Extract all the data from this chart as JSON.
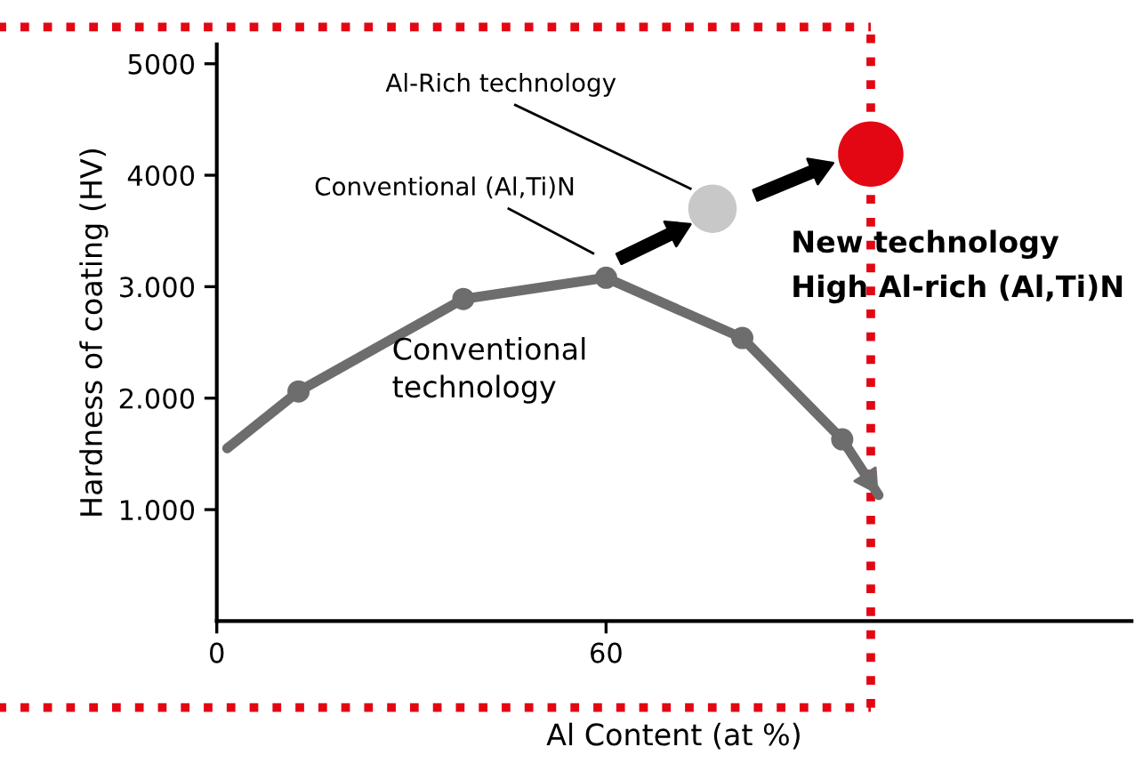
{
  "chart_data": {
    "type": "line",
    "xlabel": "Al Content (at %)",
    "ylabel": "Hardness of coating (HV)",
    "xlim": [
      0,
      141
    ],
    "ylim": [
      0,
      5175
    ],
    "xticks": [
      0,
      60
    ],
    "yticks": [
      {
        "value": 1000,
        "label": "1.000"
      },
      {
        "value": 2000,
        "label": "2.000"
      },
      {
        "value": 3000,
        "label": "3.000"
      },
      4000,
      5000
    ],
    "series": [
      {
        "color": "#6d6d6d",
        "x": [
          1.6,
          12.6,
          38,
          60,
          81,
          96.4,
          102
        ],
        "values": [
          1550,
          2060,
          2890,
          3080,
          2540,
          1630,
          1130
        ],
        "marker": "circle"
      },
      {
        "type": "bubble",
        "color": "#c8c8c8",
        "x": [
          76.4
        ],
        "values": [
          3700
        ],
        "sizes": [
          0.55
        ]
      },
      {
        "type": "bubble",
        "color": "#e30613",
        "x": [
          100.8
        ],
        "values": [
          4190
        ],
        "sizes": [
          1
        ]
      }
    ],
    "ref_lines": [
      {
        "axis": "x",
        "value": 100.8,
        "label": null,
        "color": "#e30613",
        "line_style": "dotted"
      }
    ],
    "annotations": [
      {
        "text": "Al-Rich technology",
        "x": 73,
        "y": 3880
      },
      "Conventional (Al,Ti)N",
      "Conventional\ntechnology",
      "New technology",
      "High Al-rich (Al,Ti)N"
    ],
    "grid": false,
    "legend": false
  }
}
